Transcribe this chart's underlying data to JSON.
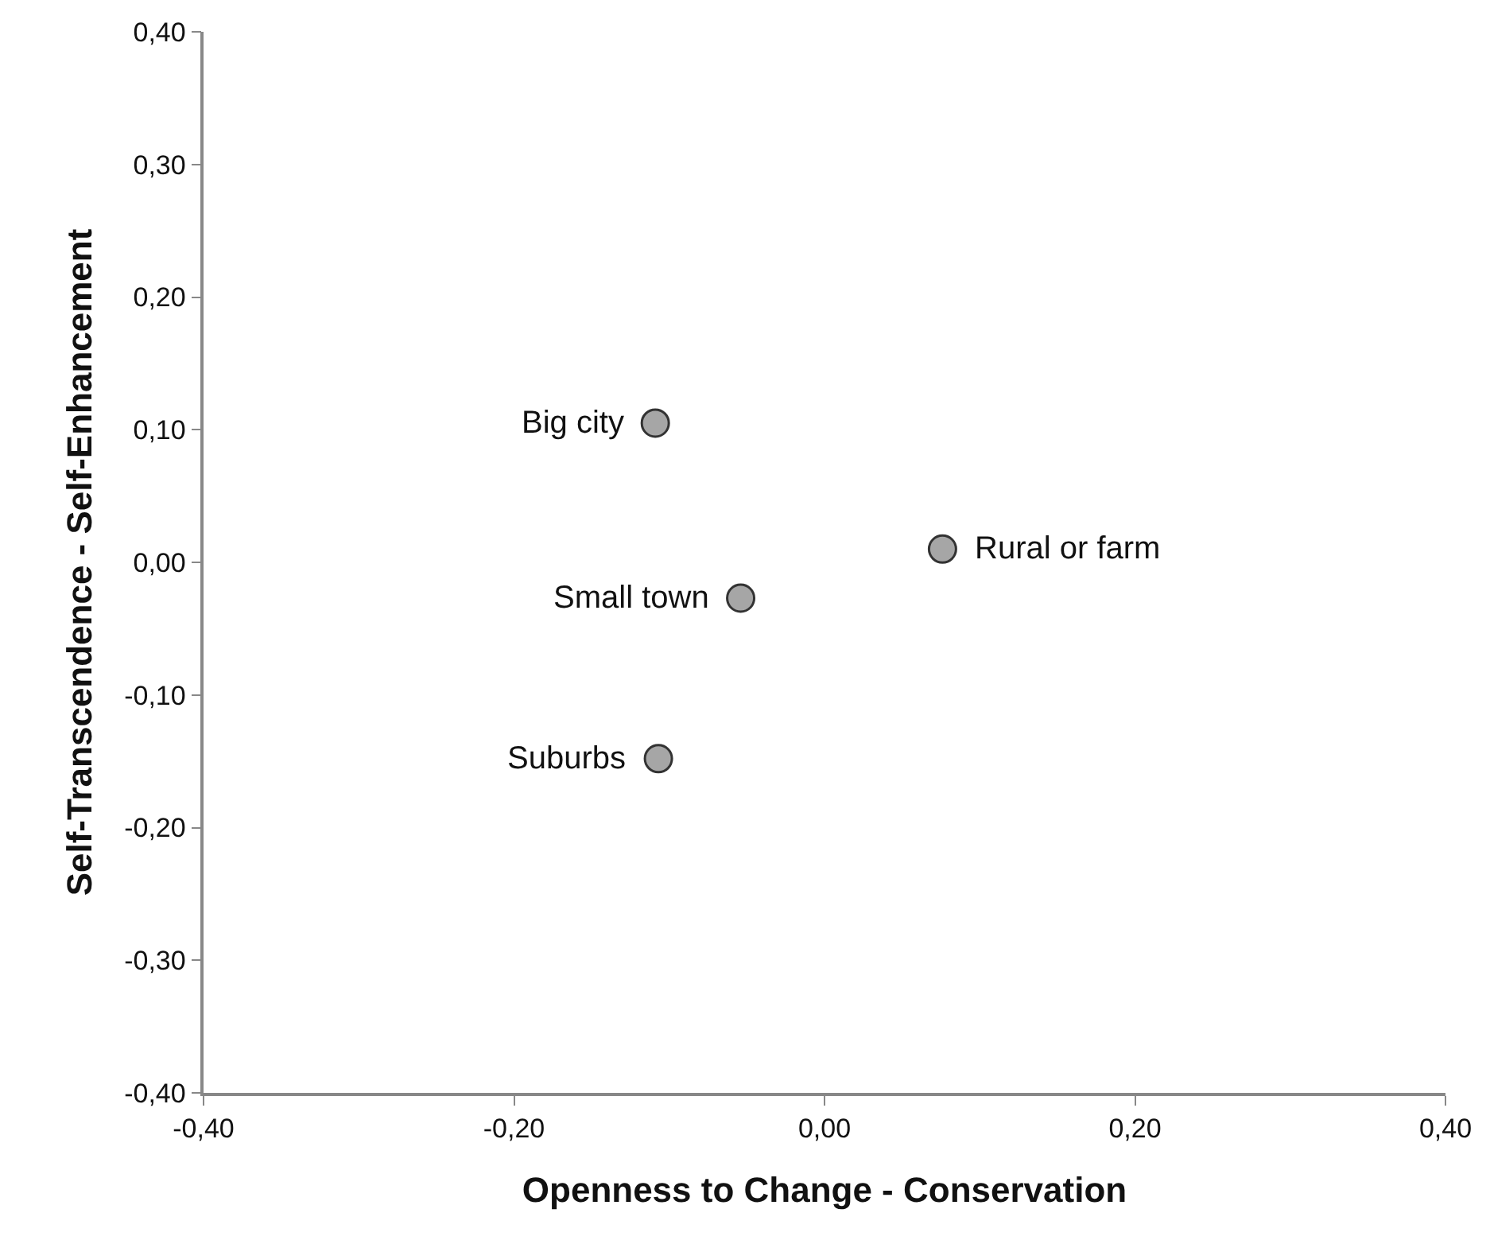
{
  "chart_data": {
    "type": "scatter",
    "xlabel": "Openness to Change - Conservation",
    "ylabel": "Self-Transcendence - Self-Enhancement",
    "x": [
      -0.109,
      0.076,
      -0.054,
      -0.107
    ],
    "series": [
      {
        "color": "#a6a6a6",
        "values": [
          0.105,
          0.01,
          -0.027,
          -0.148
        ]
      }
    ],
    "annotations": [
      {
        "text": "Big city",
        "x": -0.109,
        "y": 0.105
      },
      {
        "text": "Rural or farm",
        "x": 0.076,
        "y": 0.01
      },
      {
        "text": "Small town",
        "x": -0.054,
        "y": -0.027
      },
      {
        "text": "Suburbs",
        "x": -0.107,
        "y": -0.148
      }
    ],
    "xlim": [
      -0.4,
      0.4
    ],
    "ylim": [
      -0.4,
      0.4
    ],
    "xticks": [
      {
        "value": -0.4,
        "label": "-0,40"
      },
      {
        "value": -0.2,
        "label": "-0,20"
      },
      {
        "value": 0,
        "label": "0,00"
      },
      {
        "value": 0.2,
        "label": "0,20"
      },
      {
        "value": 0.4,
        "label": "0,40"
      }
    ],
    "yticks": [
      {
        "value": -0.4,
        "label": "-0,40"
      },
      {
        "value": -0.3,
        "label": "-0,30"
      },
      {
        "value": -0.2,
        "label": "-0,20"
      },
      {
        "value": -0.1,
        "label": "-0,10"
      },
      {
        "value": 0,
        "label": "0,00"
      },
      {
        "value": 0.1,
        "label": "0,10"
      },
      {
        "value": 0.2,
        "label": "0,20"
      },
      {
        "value": 0.3,
        "label": "0,30"
      },
      {
        "value": 0.4,
        "label": "0,40"
      }
    ],
    "marker": "circle"
  }
}
